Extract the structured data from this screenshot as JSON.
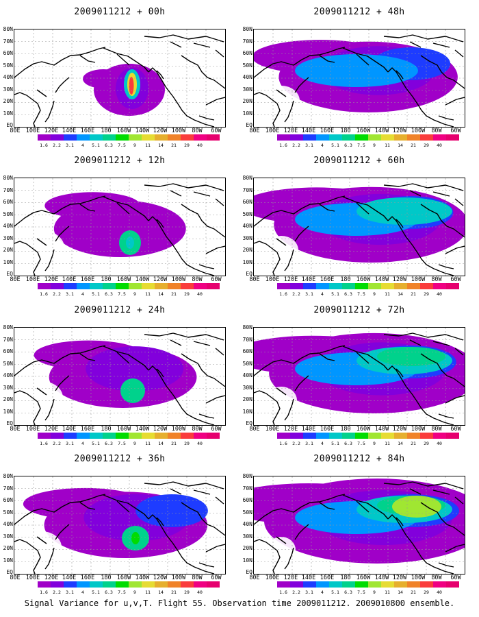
{
  "caption": "Signal Variance for u,v,T. Flight 55. Observation time 2009011212. 2009010800 ensemble.",
  "lat_labels": [
    "80N",
    "70N",
    "60N",
    "50N",
    "40N",
    "30N",
    "20N",
    "10N",
    "EQ"
  ],
  "lon_labels": [
    "80E",
    "100E",
    "120E",
    "140E",
    "160E",
    "180",
    "160W",
    "140W",
    "120W",
    "100W",
    "80W",
    "60W"
  ],
  "colorbar": {
    "labels": [
      "1.6",
      "2.2",
      "3.1",
      "4",
      "5.1",
      "6.3",
      "7.5",
      "9",
      "11",
      "14",
      "21",
      "29",
      "40"
    ],
    "colors": [
      "#a000c8",
      "#8200dc",
      "#1e3cff",
      "#0096ff",
      "#00c8c8",
      "#00d28c",
      "#00dc00",
      "#a0e632",
      "#e6dc32",
      "#e6af2d",
      "#f08228",
      "#fa3c3c",
      "#f00082"
    ]
  },
  "panels": [
    {
      "title": "2009011212 + 00h",
      "level": 0
    },
    {
      "title": "2009011212 + 12h",
      "level": 1
    },
    {
      "title": "2009011212 + 24h",
      "level": 2
    },
    {
      "title": "2009011212 + 36h",
      "level": 3
    },
    {
      "title": "2009011212 + 48h",
      "level": 4
    },
    {
      "title": "2009011212 + 60h",
      "level": 5
    },
    {
      "title": "2009011212 + 72h",
      "level": 6
    },
    {
      "title": "2009011212 + 84h",
      "level": 7
    }
  ]
}
